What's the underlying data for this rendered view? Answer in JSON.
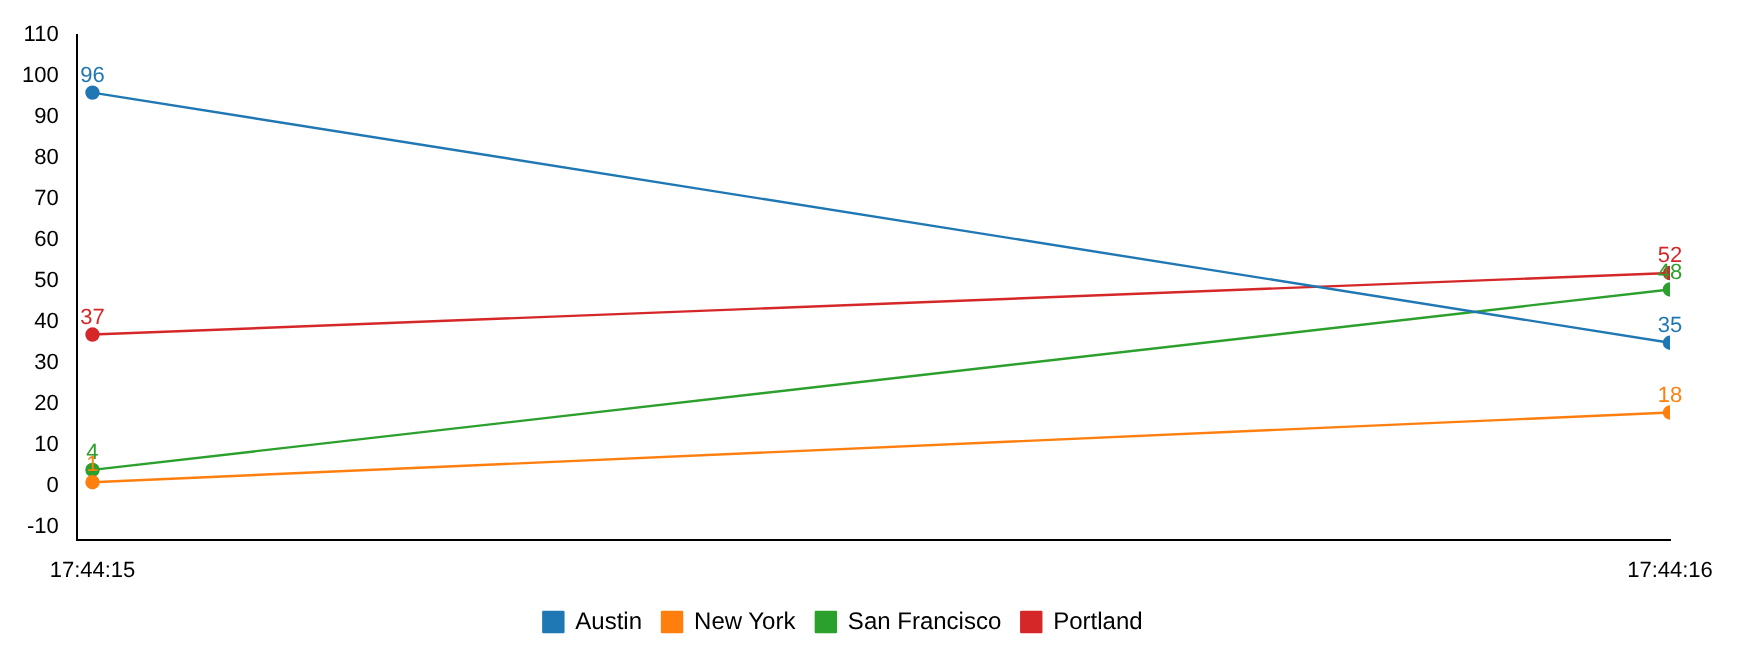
{
  "chart_data": {
    "type": "line",
    "categories": [
      "17:44:15",
      "17:44:16"
    ],
    "series": [
      {
        "name": "Austin",
        "color": "#1f77b4",
        "values": [
          96,
          35
        ]
      },
      {
        "name": "New York",
        "color": "#ff7f0e",
        "values": [
          1,
          18
        ]
      },
      {
        "name": "San Francisco",
        "color": "#2ca02c",
        "values": [
          4,
          48
        ]
      },
      {
        "name": "Portland",
        "color": "#d62728",
        "values": [
          37,
          52
        ]
      }
    ],
    "ylim": [
      -13,
      110
    ],
    "yticks": [
      -10,
      0,
      10,
      20,
      30,
      40,
      50,
      60,
      70,
      80,
      90,
      100,
      110
    ],
    "grid": false,
    "legend": "bottom",
    "marker": "circle",
    "data_labels": true
  }
}
